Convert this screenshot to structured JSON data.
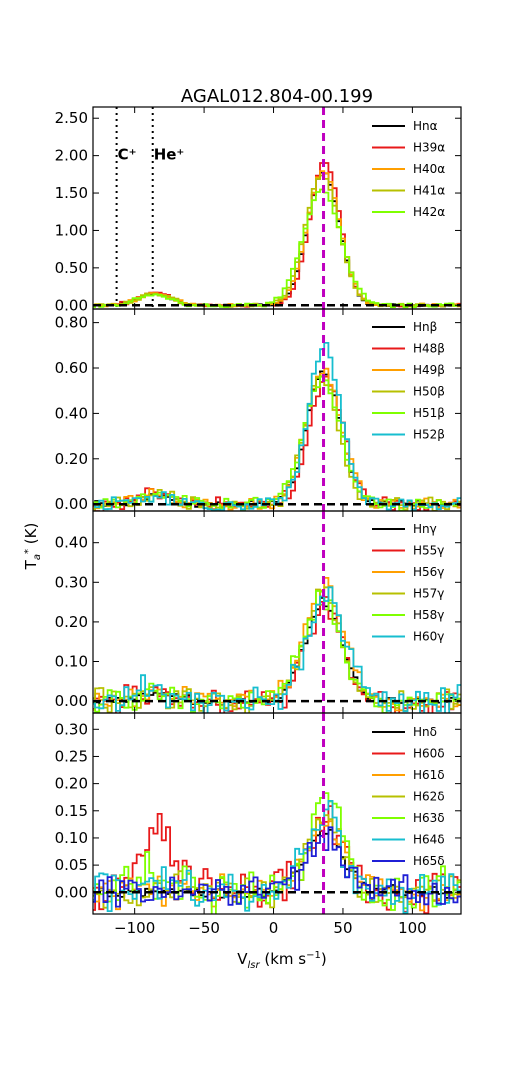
{
  "chart_data": {
    "type": "line",
    "title": "AGAL012.804-00.199",
    "xlabel": "V_lsr (km s^-1)",
    "ylabel": "T_a* (K)",
    "xlim": [
      -130,
      135
    ],
    "x_ticks": [
      -100,
      -50,
      0,
      50,
      100
    ],
    "x_tick_labels": [
      "−100",
      "−50",
      "0",
      "50",
      "100"
    ],
    "reference_velocity": 36,
    "reference_line_color": "#bf00bf",
    "zero_line_color": "#000000",
    "panels": [
      {
        "id": "alpha",
        "ylim": [
          -0.05,
          2.65
        ],
        "y_ticks": [
          0,
          0.5,
          1.0,
          1.5,
          2.0,
          2.5
        ],
        "y_tick_labels": [
          "0.00",
          "0.50",
          "1.00",
          "1.50",
          "2.00",
          "2.50"
        ],
        "annotations": [
          {
            "text": "C⁺",
            "x": -113,
            "line_style": "dotted",
            "label_y": 2.0
          },
          {
            "text": "He⁺",
            "x": -87,
            "line_style": "dotted",
            "label_y": 2.0
          }
        ],
        "legend": [
          "Hnα",
          "H39α",
          "H40α",
          "H41α",
          "H42α"
        ],
        "series": [
          {
            "name": "Hnα",
            "color": "#000000",
            "amplitude": 1.78,
            "center": 36,
            "sigma": 11.5,
            "noise": 0.01,
            "bump": 0.15
          },
          {
            "name": "H39α",
            "color": "#e8191a",
            "amplitude": 1.92,
            "center": 37,
            "sigma": 11.0,
            "noise": 0.015,
            "bump": 0.17
          },
          {
            "name": "H40α",
            "color": "#ff9f00",
            "amplitude": 1.8,
            "center": 36,
            "sigma": 11.8,
            "noise": 0.015,
            "bump": 0.16
          },
          {
            "name": "H41α",
            "color": "#b7c000",
            "amplitude": 1.75,
            "center": 35,
            "sigma": 12.0,
            "noise": 0.015,
            "bump": 0.15
          },
          {
            "name": "H42α",
            "color": "#7fff00",
            "amplitude": 1.55,
            "center": 35,
            "sigma": 13.5,
            "noise": 0.02,
            "bump": 0.14
          }
        ]
      },
      {
        "id": "beta",
        "ylim": [
          -0.03,
          0.86
        ],
        "y_ticks": [
          0,
          0.2,
          0.4,
          0.6,
          0.8
        ],
        "y_tick_labels": [
          "0.00",
          "0.20",
          "0.40",
          "0.60",
          "0.80"
        ],
        "legend": [
          "Hnβ",
          "H48β",
          "H49β",
          "H50β",
          "H51β",
          "H52β"
        ],
        "series": [
          {
            "name": "Hnβ",
            "color": "#000000",
            "amplitude": 0.58,
            "center": 36,
            "sigma": 12.0,
            "noise": 0.01,
            "bump": 0.04
          },
          {
            "name": "H48β",
            "color": "#e8191a",
            "amplitude": 0.56,
            "center": 38,
            "sigma": 12.0,
            "noise": 0.02,
            "bump": 0.05
          },
          {
            "name": "H49β",
            "color": "#ff9f00",
            "amplitude": 0.6,
            "center": 36,
            "sigma": 12.5,
            "noise": 0.02,
            "bump": 0.04
          },
          {
            "name": "H50β",
            "color": "#b7c000",
            "amplitude": 0.57,
            "center": 35,
            "sigma": 12.0,
            "noise": 0.02,
            "bump": 0.04
          },
          {
            "name": "H51β",
            "color": "#7fff00",
            "amplitude": 0.55,
            "center": 35,
            "sigma": 13.0,
            "noise": 0.02,
            "bump": 0.04
          },
          {
            "name": "H52β",
            "color": "#17becf",
            "amplitude": 0.7,
            "center": 37,
            "sigma": 11.5,
            "noise": 0.02,
            "bump": 0.03
          }
        ]
      },
      {
        "id": "gamma",
        "ylim": [
          -0.03,
          0.48
        ],
        "y_ticks": [
          0,
          0.1,
          0.2,
          0.3,
          0.4
        ],
        "y_tick_labels": [
          "0.00",
          "0.10",
          "0.20",
          "0.30",
          "0.40"
        ],
        "legend": [
          "Hnγ",
          "H55γ",
          "H56γ",
          "H57γ",
          "H58γ",
          "H60γ"
        ],
        "series": [
          {
            "name": "Hnγ",
            "color": "#000000",
            "amplitude": 0.25,
            "center": 36,
            "sigma": 13.0,
            "noise": 0.008,
            "bump": 0.02
          },
          {
            "name": "H55γ",
            "color": "#e8191a",
            "amplitude": 0.24,
            "center": 37,
            "sigma": 13.0,
            "noise": 0.025,
            "bump": 0.03
          },
          {
            "name": "H56γ",
            "color": "#ff9f00",
            "amplitude": 0.29,
            "center": 37,
            "sigma": 14.0,
            "noise": 0.02,
            "bump": 0.02
          },
          {
            "name": "H57γ",
            "color": "#b7c000",
            "amplitude": 0.27,
            "center": 35,
            "sigma": 13.0,
            "noise": 0.02,
            "bump": 0.02
          },
          {
            "name": "H58γ",
            "color": "#7fff00",
            "amplitude": 0.25,
            "center": 34,
            "sigma": 14.0,
            "noise": 0.02,
            "bump": 0.02
          },
          {
            "name": "H60γ",
            "color": "#17becf",
            "amplitude": 0.26,
            "center": 38,
            "sigma": 13.5,
            "noise": 0.025,
            "bump": 0.03
          }
        ]
      },
      {
        "id": "delta",
        "ylim": [
          -0.04,
          0.33
        ],
        "y_ticks": [
          0,
          0.05,
          0.1,
          0.15,
          0.2,
          0.25,
          0.3
        ],
        "y_tick_labels": [
          "0.00",
          "0.05",
          "0.10",
          "0.15",
          "0.20",
          "0.25",
          "0.30"
        ],
        "legend": [
          "Hnδ",
          "H60δ",
          "H61δ",
          "H62δ",
          "H63δ",
          "H64δ",
          "H65δ"
        ],
        "series": [
          {
            "name": "Hnδ",
            "color": "#000000",
            "amplitude": 0.11,
            "center": 36,
            "sigma": 14.0,
            "noise": 0.008,
            "bump": 0.0
          },
          {
            "name": "H60δ",
            "color": "#e8191a",
            "amplitude": 0.13,
            "center": 37,
            "sigma": 14.0,
            "noise": 0.03,
            "bump": 0.1
          },
          {
            "name": "H61δ",
            "color": "#ff9f00",
            "amplitude": 0.12,
            "center": 37,
            "sigma": 14.0,
            "noise": 0.02,
            "bump": 0.01
          },
          {
            "name": "H62δ",
            "color": "#b7c000",
            "amplitude": 0.14,
            "center": 35,
            "sigma": 13.0,
            "noise": 0.02,
            "bump": 0.01
          },
          {
            "name": "H63δ",
            "color": "#7fff00",
            "amplitude": 0.17,
            "center": 38,
            "sigma": 12.0,
            "noise": 0.03,
            "bump": 0.03
          },
          {
            "name": "H64δ",
            "color": "#17becf",
            "amplitude": 0.14,
            "center": 36,
            "sigma": 13.0,
            "noise": 0.025,
            "bump": 0.01
          },
          {
            "name": "H65δ",
            "color": "#1f1fd6",
            "amplitude": 0.1,
            "center": 37,
            "sigma": 14.0,
            "noise": 0.02,
            "bump": 0.0
          }
        ]
      }
    ]
  }
}
